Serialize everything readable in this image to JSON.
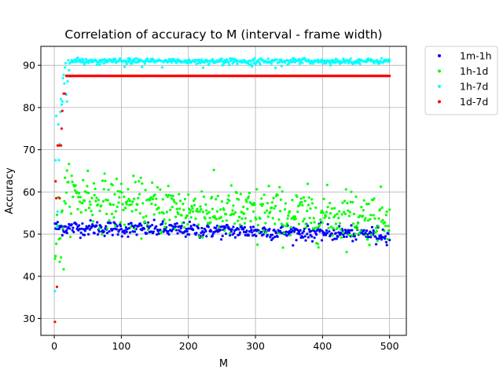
{
  "chart_data": {
    "type": "scatter",
    "title": "Correlation of accuracy to M (interval - frame width)",
    "xlabel": "M",
    "ylabel": "Accuracy",
    "xlim": [
      -20,
      525
    ],
    "ylim": [
      26,
      94.5
    ],
    "xticks": [
      0,
      100,
      200,
      300,
      400,
      500
    ],
    "yticks": [
      30,
      40,
      50,
      60,
      70,
      80,
      90
    ],
    "grid": true,
    "legend_position": "outside-top-right",
    "x_range": [
      1,
      500
    ],
    "series": [
      {
        "name": "1m-1h",
        "color": "#0000ff",
        "pattern": "noisy-flat",
        "start": 51.6,
        "end": 50.0,
        "noise": 0.9,
        "samples": [
          [
            1,
            52.5
          ],
          [
            50,
            51.5
          ],
          [
            100,
            51.2
          ],
          [
            200,
            51.3
          ],
          [
            300,
            51.0
          ],
          [
            400,
            50.7
          ],
          [
            480,
            47.6
          ],
          [
            500,
            48.6
          ]
        ]
      },
      {
        "name": "1h-1d",
        "color": "#00ff00",
        "pattern": "noisy-decay",
        "start": 58.0,
        "end": 54.0,
        "noise": 3.0,
        "samples": [
          [
            2,
            44.8
          ],
          [
            5,
            52.0
          ],
          [
            50,
            65.0
          ],
          [
            100,
            61.9
          ],
          [
            170,
            61.4
          ],
          [
            220,
            60.1
          ],
          [
            303,
            47.5
          ],
          [
            320,
            61.4
          ],
          [
            435,
            60.6
          ],
          [
            500,
            55.8
          ]
        ]
      },
      {
        "name": "1h-7d",
        "color": "#00ffff",
        "pattern": "saturating",
        "start": 36.5,
        "plateau": 91.0,
        "noise": 0.3,
        "samples": [
          [
            1,
            36.5
          ],
          [
            2,
            67.5
          ],
          [
            3,
            78.0
          ],
          [
            6,
            76.0
          ],
          [
            10,
            82.0
          ],
          [
            13,
            87.0
          ],
          [
            16,
            89.5
          ],
          [
            25,
            90.8
          ],
          [
            100,
            91.0
          ],
          [
            330,
            89.4
          ],
          [
            500,
            91.1
          ]
        ]
      },
      {
        "name": "1d-7d",
        "color": "#ff0000",
        "pattern": "step-then-flat",
        "points": [
          [
            1,
            29.2
          ],
          [
            2,
            62.5
          ],
          [
            3,
            58.5
          ],
          [
            4,
            37.5
          ],
          [
            5,
            71.0
          ],
          [
            7,
            71.0
          ],
          [
            8,
            58.5
          ],
          [
            10,
            71.0
          ],
          [
            11,
            75.0
          ],
          [
            12,
            79.2
          ],
          [
            14,
            83.3
          ],
          [
            16,
            83.3
          ],
          [
            18,
            87.5
          ]
        ],
        "plateau": 87.5,
        "plateau_from": 19,
        "plateau_to": 500
      }
    ]
  }
}
